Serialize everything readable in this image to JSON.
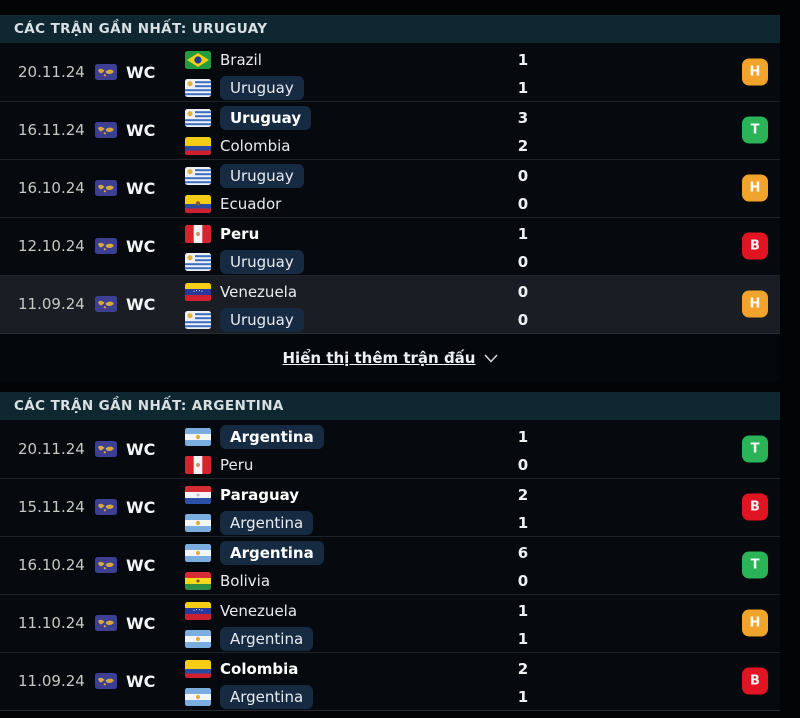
{
  "show_more": {
    "label": "Hiển thị thêm trận đấu",
    "icon": "chevron-down-icon"
  },
  "result_colors": {
    "T": "#2bb457",
    "H": "#f1a42b",
    "B": "#e11522"
  },
  "colors": {
    "section_header_bg": "#0e2731",
    "row_bg": "#06090d",
    "row_highlight_bg": "#1a1e24",
    "focus_pill_bg": "#162a42",
    "divider": "#1d242b"
  },
  "sections": [
    {
      "title": "CÁC TRẬN GẦN NHẤT: URUGUAY",
      "matches": [
        {
          "date": "20.11.24",
          "competition": "WC",
          "result": "H",
          "highlighted": false,
          "home": {
            "name": "Brazil",
            "flag": "brazil",
            "score": "1",
            "bold": false,
            "focus": false
          },
          "away": {
            "name": "Uruguay",
            "flag": "uruguay",
            "score": "1",
            "bold": false,
            "focus": true
          }
        },
        {
          "date": "16.11.24",
          "competition": "WC",
          "result": "T",
          "highlighted": false,
          "home": {
            "name": "Uruguay",
            "flag": "uruguay",
            "score": "3",
            "bold": true,
            "focus": true
          },
          "away": {
            "name": "Colombia",
            "flag": "colombia",
            "score": "2",
            "bold": false,
            "focus": false
          }
        },
        {
          "date": "16.10.24",
          "competition": "WC",
          "result": "H",
          "highlighted": false,
          "home": {
            "name": "Uruguay",
            "flag": "uruguay",
            "score": "0",
            "bold": false,
            "focus": true
          },
          "away": {
            "name": "Ecuador",
            "flag": "ecuador",
            "score": "0",
            "bold": false,
            "focus": false
          }
        },
        {
          "date": "12.10.24",
          "competition": "WC",
          "result": "B",
          "highlighted": false,
          "home": {
            "name": "Peru",
            "flag": "peru",
            "score": "1",
            "bold": true,
            "focus": false
          },
          "away": {
            "name": "Uruguay",
            "flag": "uruguay",
            "score": "0",
            "bold": false,
            "focus": true
          }
        },
        {
          "date": "11.09.24",
          "competition": "WC",
          "result": "H",
          "highlighted": true,
          "home": {
            "name": "Venezuela",
            "flag": "venezuela",
            "score": "0",
            "bold": false,
            "focus": false
          },
          "away": {
            "name": "Uruguay",
            "flag": "uruguay",
            "score": "0",
            "bold": false,
            "focus": true
          }
        }
      ]
    },
    {
      "title": "CÁC TRẬN GẦN NHẤT: ARGENTINA",
      "matches": [
        {
          "date": "20.11.24",
          "competition": "WC",
          "result": "T",
          "highlighted": false,
          "home": {
            "name": "Argentina",
            "flag": "argentina",
            "score": "1",
            "bold": true,
            "focus": true
          },
          "away": {
            "name": "Peru",
            "flag": "peru",
            "score": "0",
            "bold": false,
            "focus": false
          }
        },
        {
          "date": "15.11.24",
          "competition": "WC",
          "result": "B",
          "highlighted": false,
          "home": {
            "name": "Paraguay",
            "flag": "paraguay",
            "score": "2",
            "bold": true,
            "focus": false
          },
          "away": {
            "name": "Argentina",
            "flag": "argentina",
            "score": "1",
            "bold": false,
            "focus": true
          }
        },
        {
          "date": "16.10.24",
          "competition": "WC",
          "result": "T",
          "highlighted": false,
          "home": {
            "name": "Argentina",
            "flag": "argentina",
            "score": "6",
            "bold": true,
            "focus": true
          },
          "away": {
            "name": "Bolivia",
            "flag": "bolivia",
            "score": "0",
            "bold": false,
            "focus": false
          }
        },
        {
          "date": "11.10.24",
          "competition": "WC",
          "result": "H",
          "highlighted": false,
          "home": {
            "name": "Venezuela",
            "flag": "venezuela",
            "score": "1",
            "bold": false,
            "focus": false
          },
          "away": {
            "name": "Argentina",
            "flag": "argentina",
            "score": "1",
            "bold": false,
            "focus": true
          }
        },
        {
          "date": "11.09.24",
          "competition": "WC",
          "result": "B",
          "highlighted": false,
          "home": {
            "name": "Colombia",
            "flag": "colombia",
            "score": "2",
            "bold": true,
            "focus": false
          },
          "away": {
            "name": "Argentina",
            "flag": "argentina",
            "score": "1",
            "bold": false,
            "focus": true
          }
        }
      ]
    }
  ]
}
